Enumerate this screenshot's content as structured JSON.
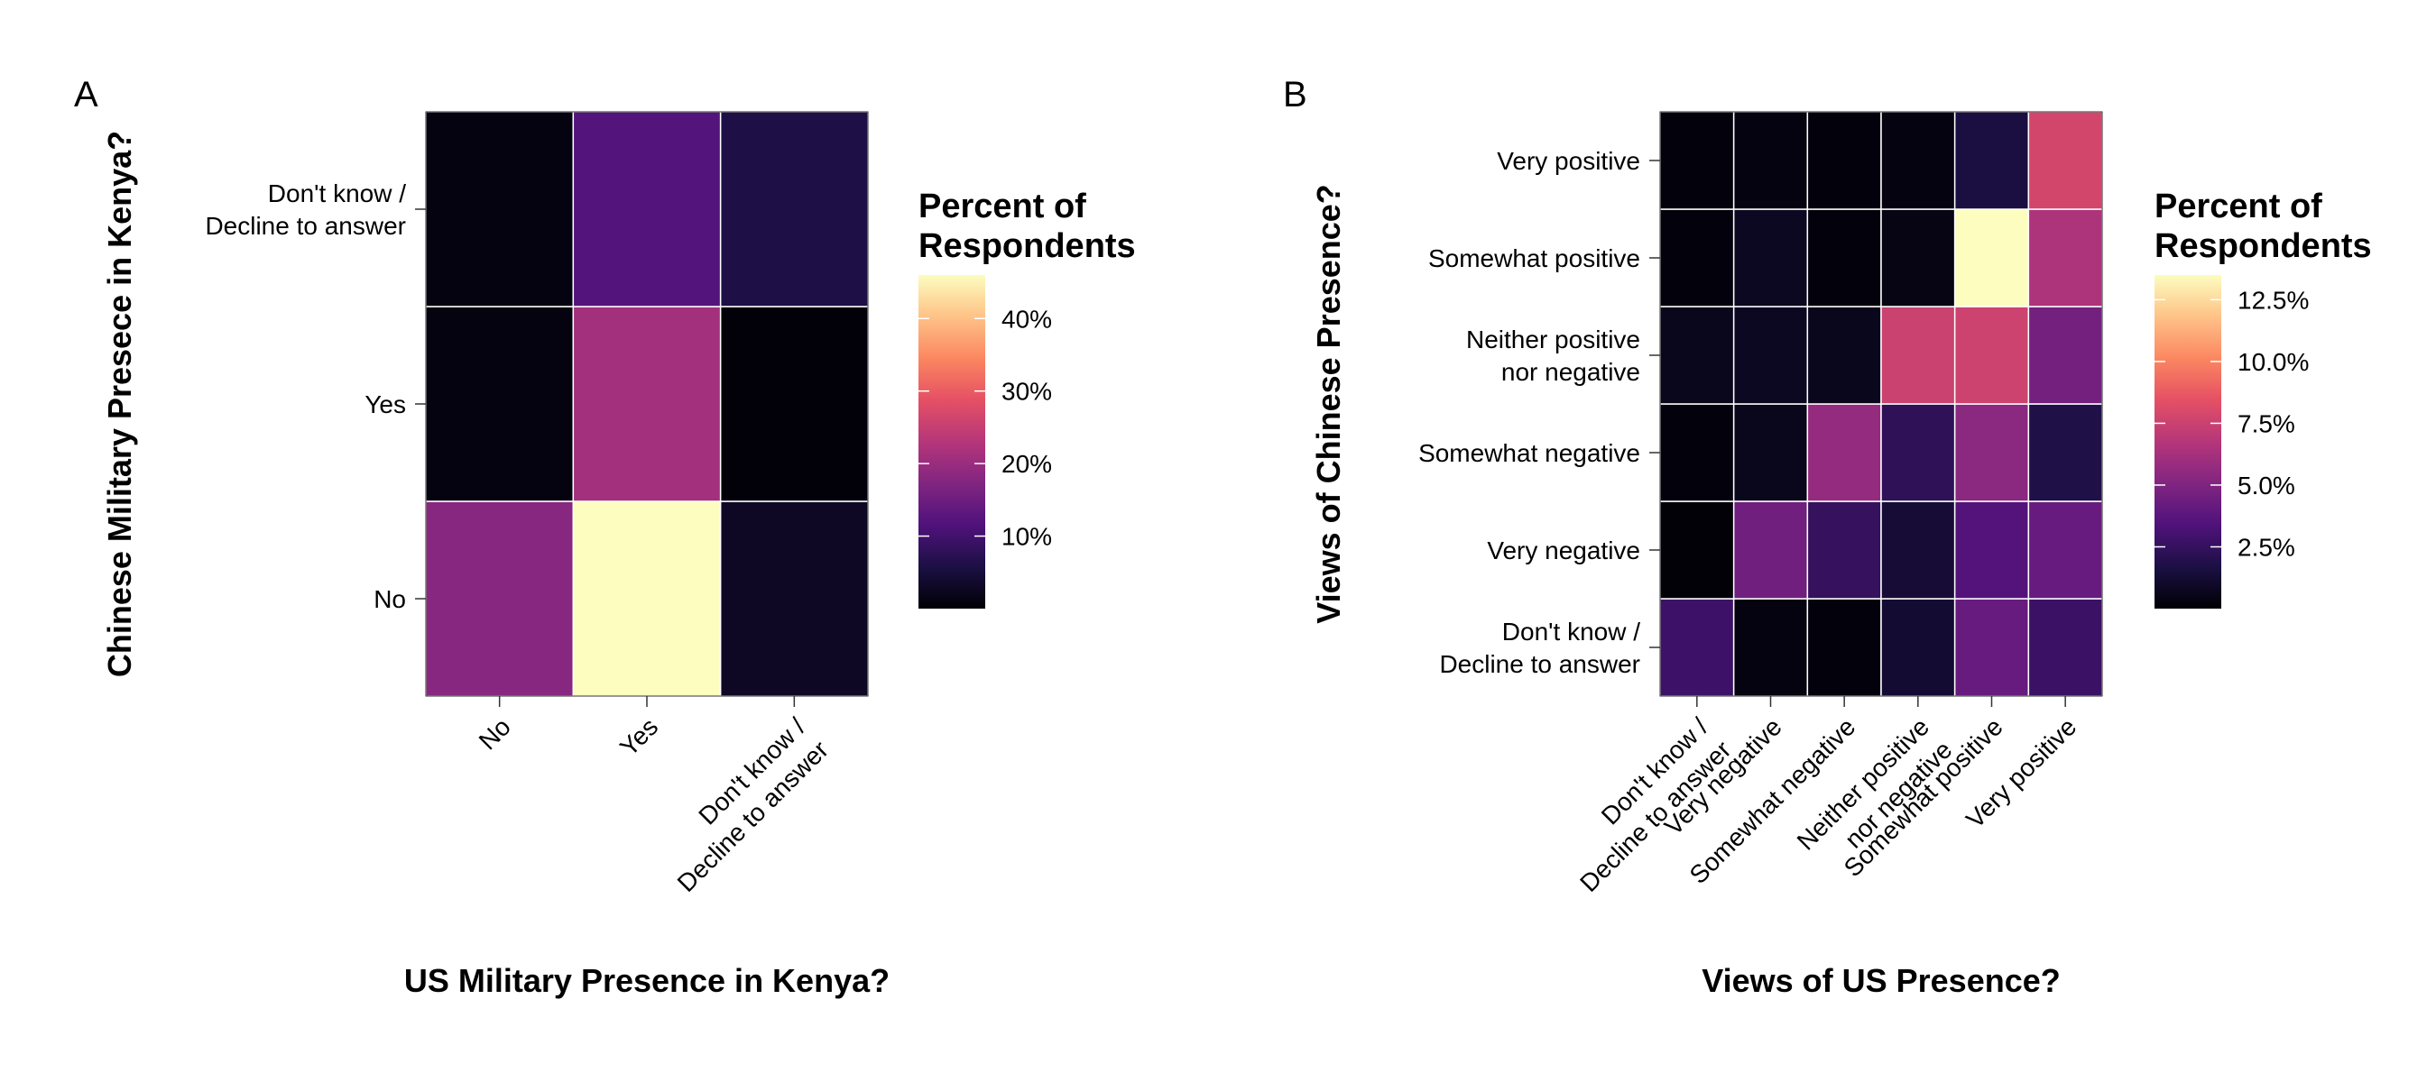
{
  "chart_data": [
    {
      "type": "heatmap",
      "panel_label": "A",
      "xlabel": "US Military Presence in Kenya?",
      "ylabel": "Chinese Military Presece in Kenya?",
      "x_categories": [
        "No",
        "Yes",
        "Don't know /\nDecline to answer"
      ],
      "y_categories": [
        "No",
        "Yes",
        "Don't know /\nDecline to answer"
      ],
      "values": [
        [
          18,
          46,
          3
        ],
        [
          1,
          21,
          0.5
        ],
        [
          1,
          12,
          6
        ]
      ],
      "legend": {
        "title": "Percent of\nRespondents",
        "ticks": [
          10,
          20,
          30,
          40
        ],
        "tick_labels": [
          "10%",
          "20%",
          "30%",
          "40%"
        ],
        "range": [
          0,
          46
        ]
      },
      "colormap": "magma"
    },
    {
      "type": "heatmap",
      "panel_label": "B",
      "xlabel": "Views of US Presence?",
      "ylabel": "Views of Chinese Presence?",
      "x_categories": [
        "Don't know /\nDecline to answer",
        "Very negative",
        "Somewhat negative",
        "Neither positive\nnor negative",
        "Somewhat positive",
        "Very positive"
      ],
      "y_categories": [
        "Don't know /\nDecline to answer",
        "Very negative",
        "Somewhat negative",
        "Neither positive\nnor negative",
        "Somewhat positive",
        "Very positive"
      ],
      "values": [
        [
          2.8,
          0.3,
          0.2,
          1.2,
          4.2,
          2.7
        ],
        [
          0.1,
          4.5,
          2.5,
          1.3,
          3.5,
          4.2
        ],
        [
          0.2,
          0.6,
          5.7,
          2.3,
          5.4,
          1.8
        ],
        [
          0.6,
          0.8,
          0.6,
          7.5,
          7.6,
          4.6
        ],
        [
          0.2,
          0.8,
          0.2,
          0.4,
          13.5,
          6.5
        ],
        [
          0.2,
          0.3,
          0.2,
          0.3,
          1.6,
          7.8
        ]
      ],
      "legend": {
        "title": "Percent of\nRespondents",
        "ticks": [
          2.5,
          5.0,
          7.5,
          10.0,
          12.5
        ],
        "tick_labels": [
          "2.5%",
          "5.0%",
          "7.5%",
          "10.0%",
          "12.5%"
        ],
        "range": [
          0,
          13.5
        ]
      },
      "colormap": "magma"
    }
  ]
}
